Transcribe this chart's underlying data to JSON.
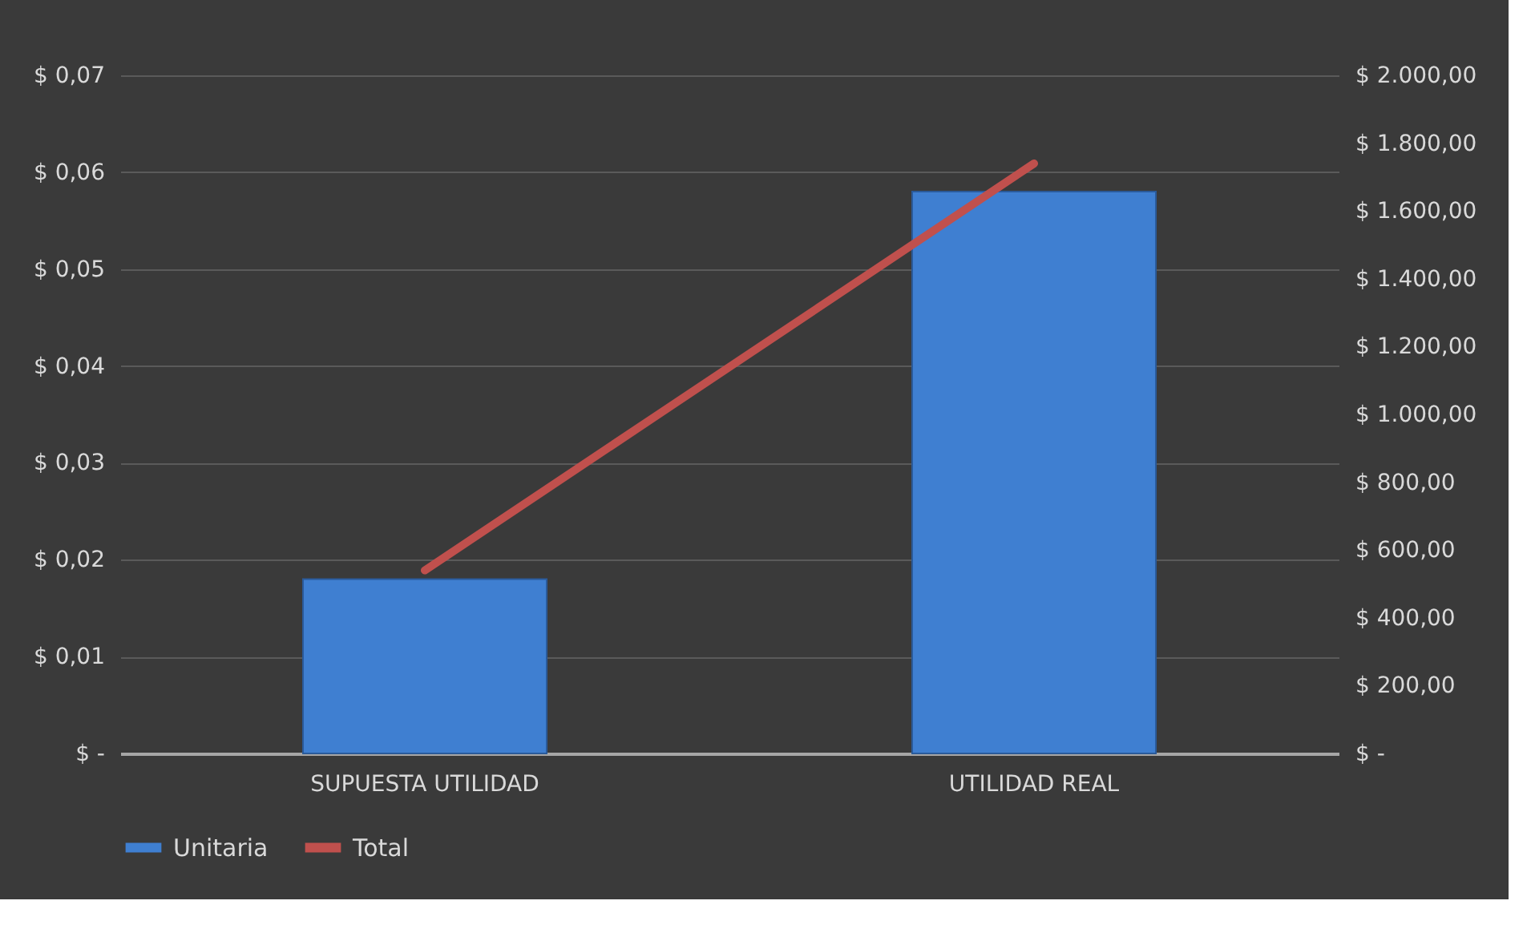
{
  "chart_data": {
    "type": "bar",
    "categories": [
      "SUPUESTA UTILIDAD",
      "UTILIDAD REAL"
    ],
    "series": [
      {
        "name": "Unitaria",
        "color": "#3f7fd1",
        "values": [
          0.018,
          0.058
        ]
      },
      {
        "name": "Total",
        "type": "line",
        "axis": "y2",
        "color": "#c0504d",
        "values": [
          540,
          1740
        ]
      }
    ],
    "ylim": [
      0,
      0.07
    ],
    "yticks": [
      {
        "value": 0,
        "label": "$ -"
      },
      {
        "value": 0.01,
        "label": "$ 0,01"
      },
      {
        "value": 0.02,
        "label": "$ 0,02"
      },
      {
        "value": 0.03,
        "label": "$ 0,03"
      },
      {
        "value": 0.04,
        "label": "$ 0,04"
      },
      {
        "value": 0.05,
        "label": "$ 0,05"
      },
      {
        "value": 0.06,
        "label": "$ 0,06"
      },
      {
        "value": 0.07,
        "label": "$ 0,07"
      }
    ],
    "y2lim": [
      0,
      2000
    ],
    "y2ticks": [
      {
        "value": 0,
        "label": "$ -"
      },
      {
        "value": 200,
        "label": "$ 200,00"
      },
      {
        "value": 400,
        "label": "$ 400,00"
      },
      {
        "value": 600,
        "label": "$ 600,00"
      },
      {
        "value": 800,
        "label": "$ 800,00"
      },
      {
        "value": 1000,
        "label": "$ 1.000,00"
      },
      {
        "value": 1200,
        "label": "$ 1.200,00"
      },
      {
        "value": 1400,
        "label": "$ 1.400,00"
      },
      {
        "value": 1600,
        "label": "$ 1.600,00"
      },
      {
        "value": 1800,
        "label": "$ 1.800,00"
      },
      {
        "value": 2000,
        "label": "$ 2.000,00"
      }
    ],
    "grid": "y",
    "legend": "bottom"
  }
}
